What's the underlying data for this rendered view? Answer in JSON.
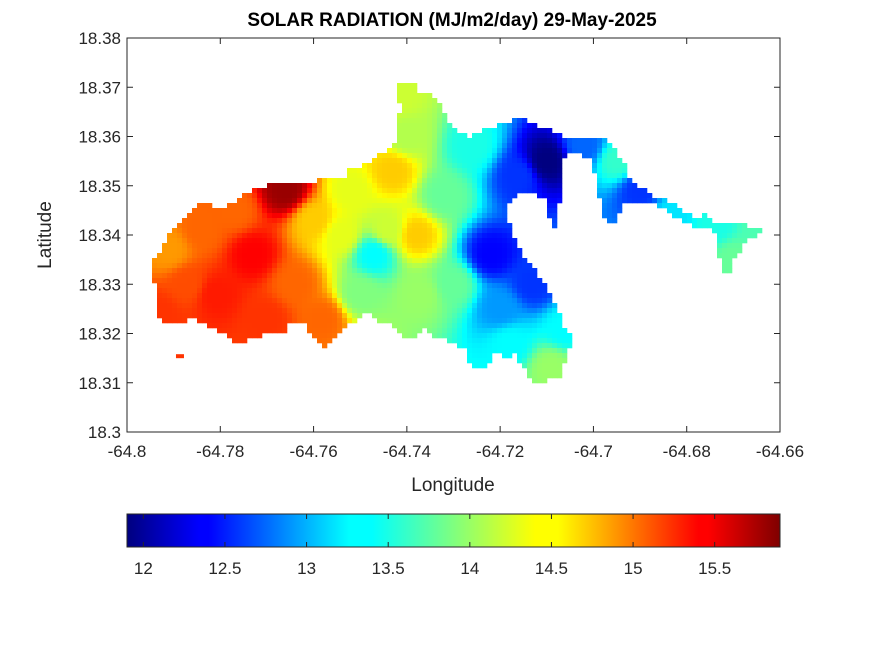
{
  "chart_data": {
    "type": "heatmap",
    "title": "SOLAR RADIATION (MJ/m2/day) 29-May-2025",
    "xlabel": "Longitude",
    "ylabel": "Latitude",
    "xlim": [
      -64.8,
      -64.66
    ],
    "ylim": [
      18.3,
      18.38
    ],
    "xticks": [
      "-64.8",
      "-64.78",
      "-64.76",
      "-64.74",
      "-64.72",
      "-64.7",
      "-64.68",
      "-64.66"
    ],
    "yticks": [
      "18.3",
      "18.31",
      "18.32",
      "18.33",
      "18.34",
      "18.35",
      "18.36",
      "18.37",
      "18.38"
    ],
    "grid": false,
    "colormap": "jet",
    "colorbar": {
      "location": "bottom",
      "range": [
        11.9,
        15.9
      ],
      "ticks": [
        "12",
        "12.5",
        "13",
        "13.5",
        "14",
        "14.5",
        "15",
        "15.5"
      ],
      "tick_values": [
        12,
        12.5,
        13,
        13.5,
        14,
        14.5,
        15,
        15.5
      ]
    },
    "field_samples": [
      {
        "lon": -64.791,
        "lat": 18.337,
        "value": 14.8
      },
      {
        "lon": -64.793,
        "lat": 18.324,
        "value": 15.2
      },
      {
        "lon": -64.787,
        "lat": 18.33,
        "value": 15.1
      },
      {
        "lon": -64.784,
        "lat": 18.341,
        "value": 15.0
      },
      {
        "lon": -64.781,
        "lat": 18.328,
        "value": 15.3
      },
      {
        "lon": -64.777,
        "lat": 18.345,
        "value": 15.0
      },
      {
        "lon": -64.773,
        "lat": 18.336,
        "value": 15.4
      },
      {
        "lon": -64.77,
        "lat": 18.323,
        "value": 15.2
      },
      {
        "lon": -64.766,
        "lat": 18.349,
        "value": 15.8
      },
      {
        "lon": -64.764,
        "lat": 18.33,
        "value": 15.0
      },
      {
        "lon": -64.76,
        "lat": 18.343,
        "value": 14.6
      },
      {
        "lon": -64.758,
        "lat": 18.323,
        "value": 15.0
      },
      {
        "lon": -64.754,
        "lat": 18.34,
        "value": 14.3
      },
      {
        "lon": -64.75,
        "lat": 18.328,
        "value": 13.9
      },
      {
        "lon": -64.752,
        "lat": 18.349,
        "value": 14.3
      },
      {
        "lon": -64.747,
        "lat": 18.336,
        "value": 13.4
      },
      {
        "lon": -64.743,
        "lat": 18.353,
        "value": 14.6
      },
      {
        "lon": -64.744,
        "lat": 18.341,
        "value": 14.2
      },
      {
        "lon": -64.74,
        "lat": 18.36,
        "value": 14.1
      },
      {
        "lon": -64.738,
        "lat": 18.34,
        "value": 14.6
      },
      {
        "lon": -64.737,
        "lat": 18.328,
        "value": 14.0
      },
      {
        "lon": -64.742,
        "lat": 18.368,
        "value": 14.2
      },
      {
        "lon": -64.732,
        "lat": 18.348,
        "value": 13.8
      },
      {
        "lon": -64.73,
        "lat": 18.33,
        "value": 13.8
      },
      {
        "lon": -64.726,
        "lat": 18.358,
        "value": 13.5
      },
      {
        "lon": -64.722,
        "lat": 18.336,
        "value": 12.4
      },
      {
        "lon": -64.72,
        "lat": 18.325,
        "value": 13.0
      },
      {
        "lon": -64.718,
        "lat": 18.318,
        "value": 13.4
      },
      {
        "lon": -64.716,
        "lat": 18.352,
        "value": 12.6
      },
      {
        "lon": -64.71,
        "lat": 18.355,
        "value": 11.9
      },
      {
        "lon": -64.713,
        "lat": 18.33,
        "value": 12.6
      },
      {
        "lon": -64.709,
        "lat": 18.313,
        "value": 14.0
      },
      {
        "lon": -64.706,
        "lat": 18.321,
        "value": 13.4
      },
      {
        "lon": -64.702,
        "lat": 18.358,
        "value": 12.8
      },
      {
        "lon": -64.695,
        "lat": 18.355,
        "value": 13.6
      },
      {
        "lon": -64.69,
        "lat": 18.349,
        "value": 12.6
      },
      {
        "lon": -64.683,
        "lat": 18.344,
        "value": 13.3
      },
      {
        "lon": -64.674,
        "lat": 18.342,
        "value": 13.5
      },
      {
        "lon": -64.67,
        "lat": 18.335,
        "value": 13.8
      },
      {
        "lon": -64.664,
        "lat": 18.341,
        "value": 13.7
      }
    ]
  }
}
